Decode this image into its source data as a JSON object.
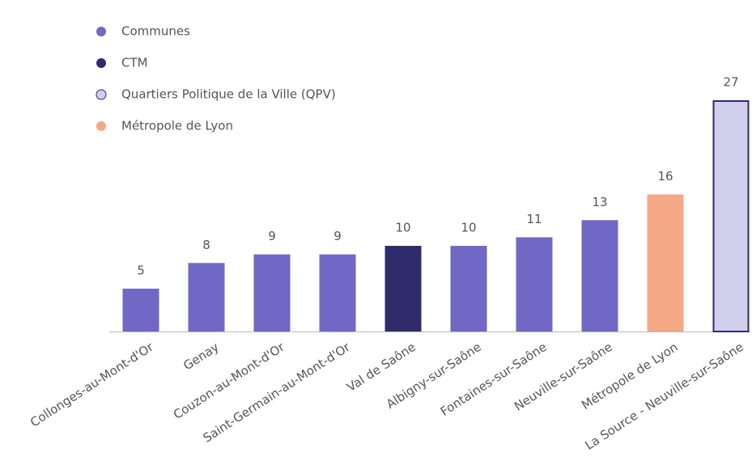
{
  "chart_data": {
    "type": "bar",
    "categories": [
      "Collonges-au-Mont-d'Or",
      "Genay",
      "Couzon-au-Mont-d'Or",
      "Saint-Germain-au-Mont-d'Or",
      "Val de Saône",
      "Albigny-sur-Saône",
      "Fontaines-sur-Saône",
      "Neuville-sur-Saône",
      "Métropole de Lyon",
      "La Source - Neuville-sur-Saône"
    ],
    "values": [
      5,
      8,
      9,
      9,
      10,
      10,
      11,
      13,
      16,
      27
    ],
    "colors": [
      "#7068c4",
      "#7068c4",
      "#7068c4",
      "#7068c4",
      "#2f2b6b",
      "#7068c4",
      "#7068c4",
      "#7068c4",
      "#f4a886",
      "#d2cfec"
    ],
    "legend": [
      {
        "name": "Communes",
        "color": "#7068c4"
      },
      {
        "name": "CTM",
        "color": "#2f2b6b"
      },
      {
        "name": "Quartiers Politique de la Ville (QPV)",
        "color": "#d2cfec",
        "stroke": "#2f2b6b"
      },
      {
        "name": "Métropole de Lyon",
        "color": "#f4a886"
      }
    ],
    "ylim": [
      0,
      27
    ]
  }
}
